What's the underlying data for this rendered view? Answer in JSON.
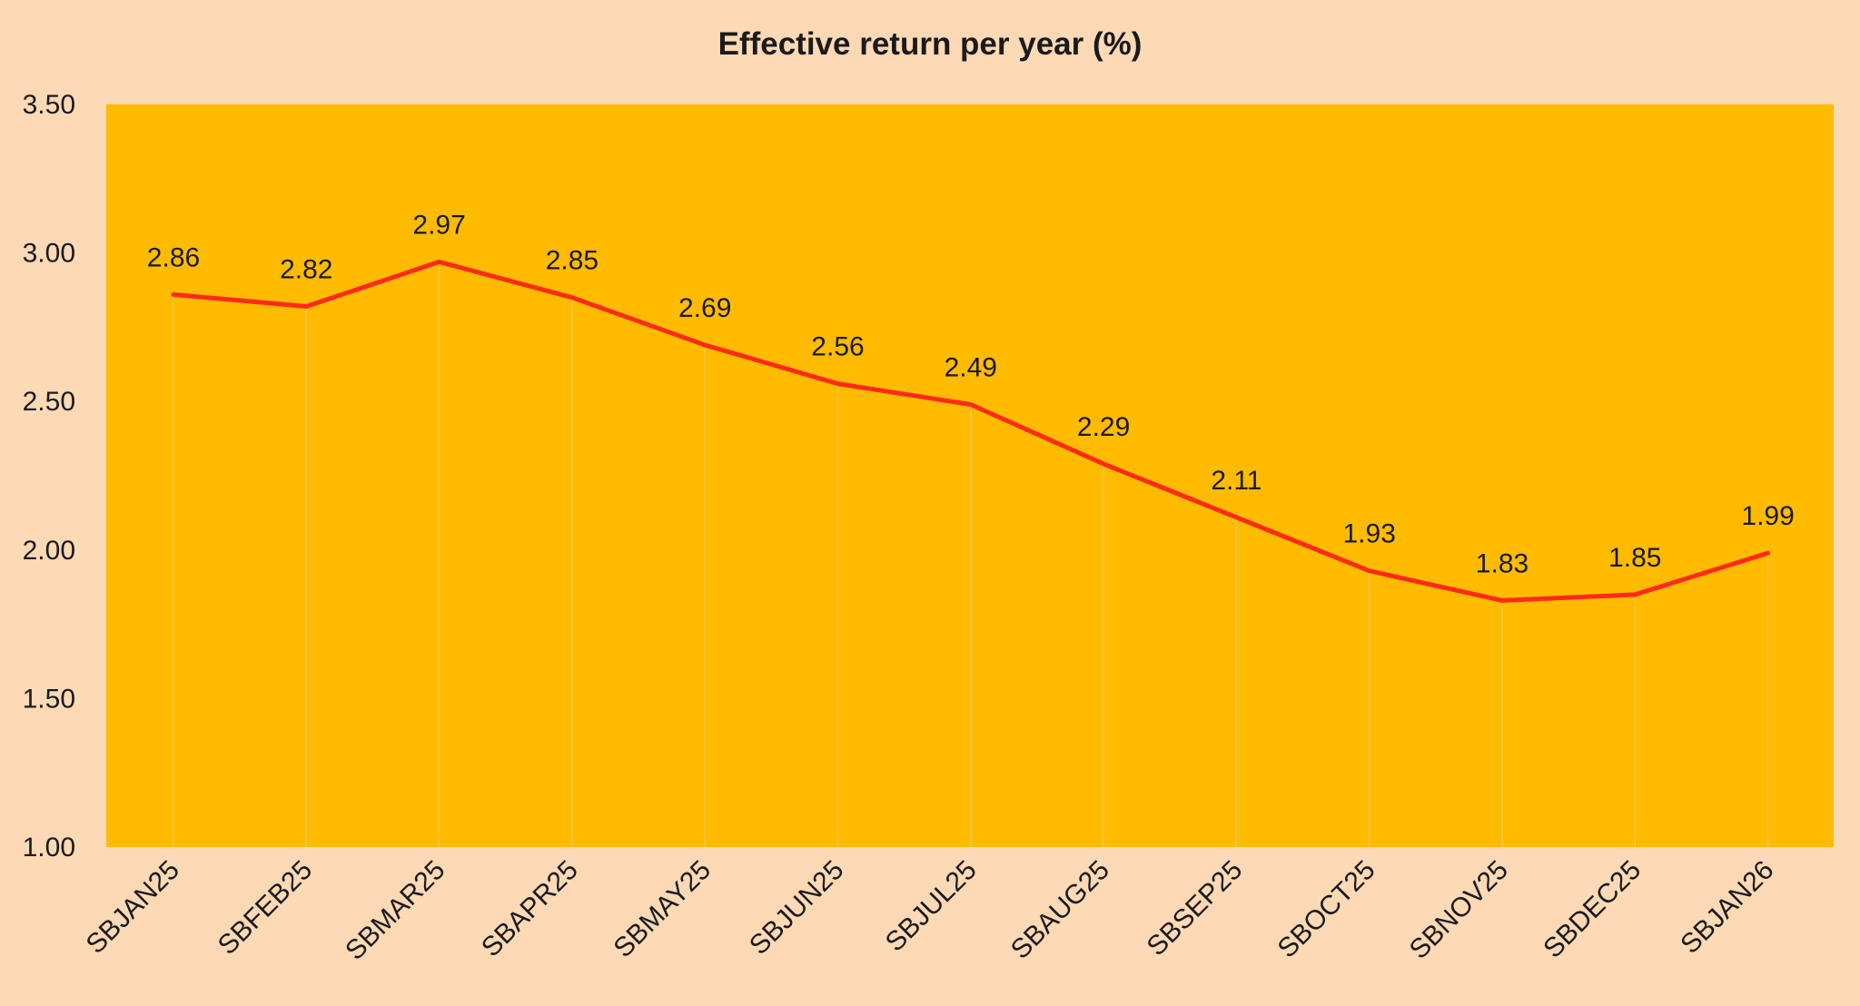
{
  "chart_data": {
    "type": "line",
    "title": "Effective return per year (%)",
    "xlabel": "",
    "ylabel": "",
    "categories": [
      "SBJAN25",
      "SBFEB25",
      "SBMAR25",
      "SBAPR25",
      "SBMAY25",
      "SBJUN25",
      "SBJUL25",
      "SBAUG25",
      "SBSEP25",
      "SBOCT25",
      "SBNOV25",
      "SBDEC25",
      "SBJAN26"
    ],
    "series": [
      {
        "values": [
          2.86,
          2.82,
          2.97,
          2.85,
          2.69,
          2.56,
          2.49,
          2.29,
          2.11,
          1.93,
          1.83,
          1.85,
          1.99
        ],
        "color": "#FF2A1A"
      }
    ],
    "data_labels": [
      "2.86",
      "2.82",
      "2.97",
      "2.85",
      "2.69",
      "2.56",
      "2.49",
      "2.29",
      "2.11",
      "1.93",
      "1.83",
      "1.85",
      "1.99"
    ],
    "ylim": [
      1.0,
      3.5
    ],
    "yticks": [
      1.0,
      1.5,
      2.0,
      2.5,
      3.0,
      3.5
    ],
    "ytick_labels": [
      "1.00",
      "1.50",
      "2.00",
      "2.50",
      "3.00",
      "3.50"
    ],
    "grid": false,
    "drop_lines": true,
    "legend": "none",
    "colors": {
      "page_background": "#FDD9B5",
      "plot_background": "#FFBB00",
      "line": "#FF2A1A",
      "drop_line": "#F7C64A"
    }
  }
}
